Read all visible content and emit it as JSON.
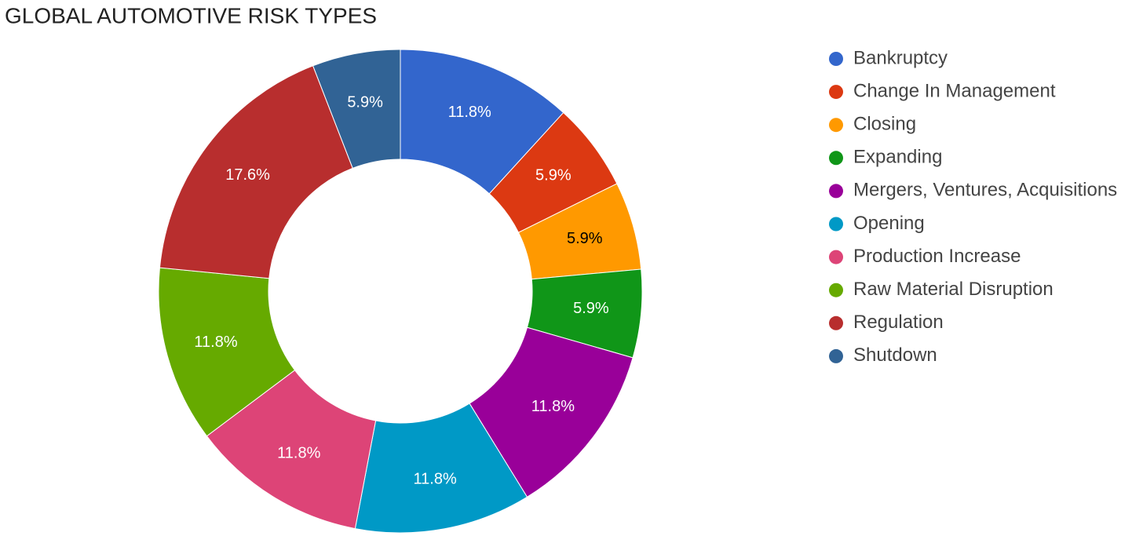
{
  "chart_data": {
    "type": "pie",
    "title": "GLOBAL AUTOMOTIVE RISK TYPES",
    "categories": [
      "Bankruptcy",
      "Change In Management",
      "Closing",
      "Expanding",
      "Mergers, Ventures, Acquisitions",
      "Opening",
      "Production Increase",
      "Raw Material Disruption",
      "Regulation",
      "Shutdown"
    ],
    "values": [
      11.8,
      5.9,
      5.9,
      5.9,
      11.8,
      11.8,
      11.8,
      11.8,
      17.6,
      5.9
    ],
    "value_labels": [
      "11.8%",
      "5.9%",
      "5.9%",
      "5.9%",
      "11.8%",
      "11.8%",
      "11.8%",
      "11.8%",
      "17.6%",
      "5.9%"
    ],
    "colors": [
      "#3366cc",
      "#dc3912",
      "#ff9900",
      "#109618",
      "#990099",
      "#0099c6",
      "#dd4477",
      "#66aa00",
      "#b82e2e",
      "#316395"
    ],
    "donut": true,
    "legend": "right"
  }
}
